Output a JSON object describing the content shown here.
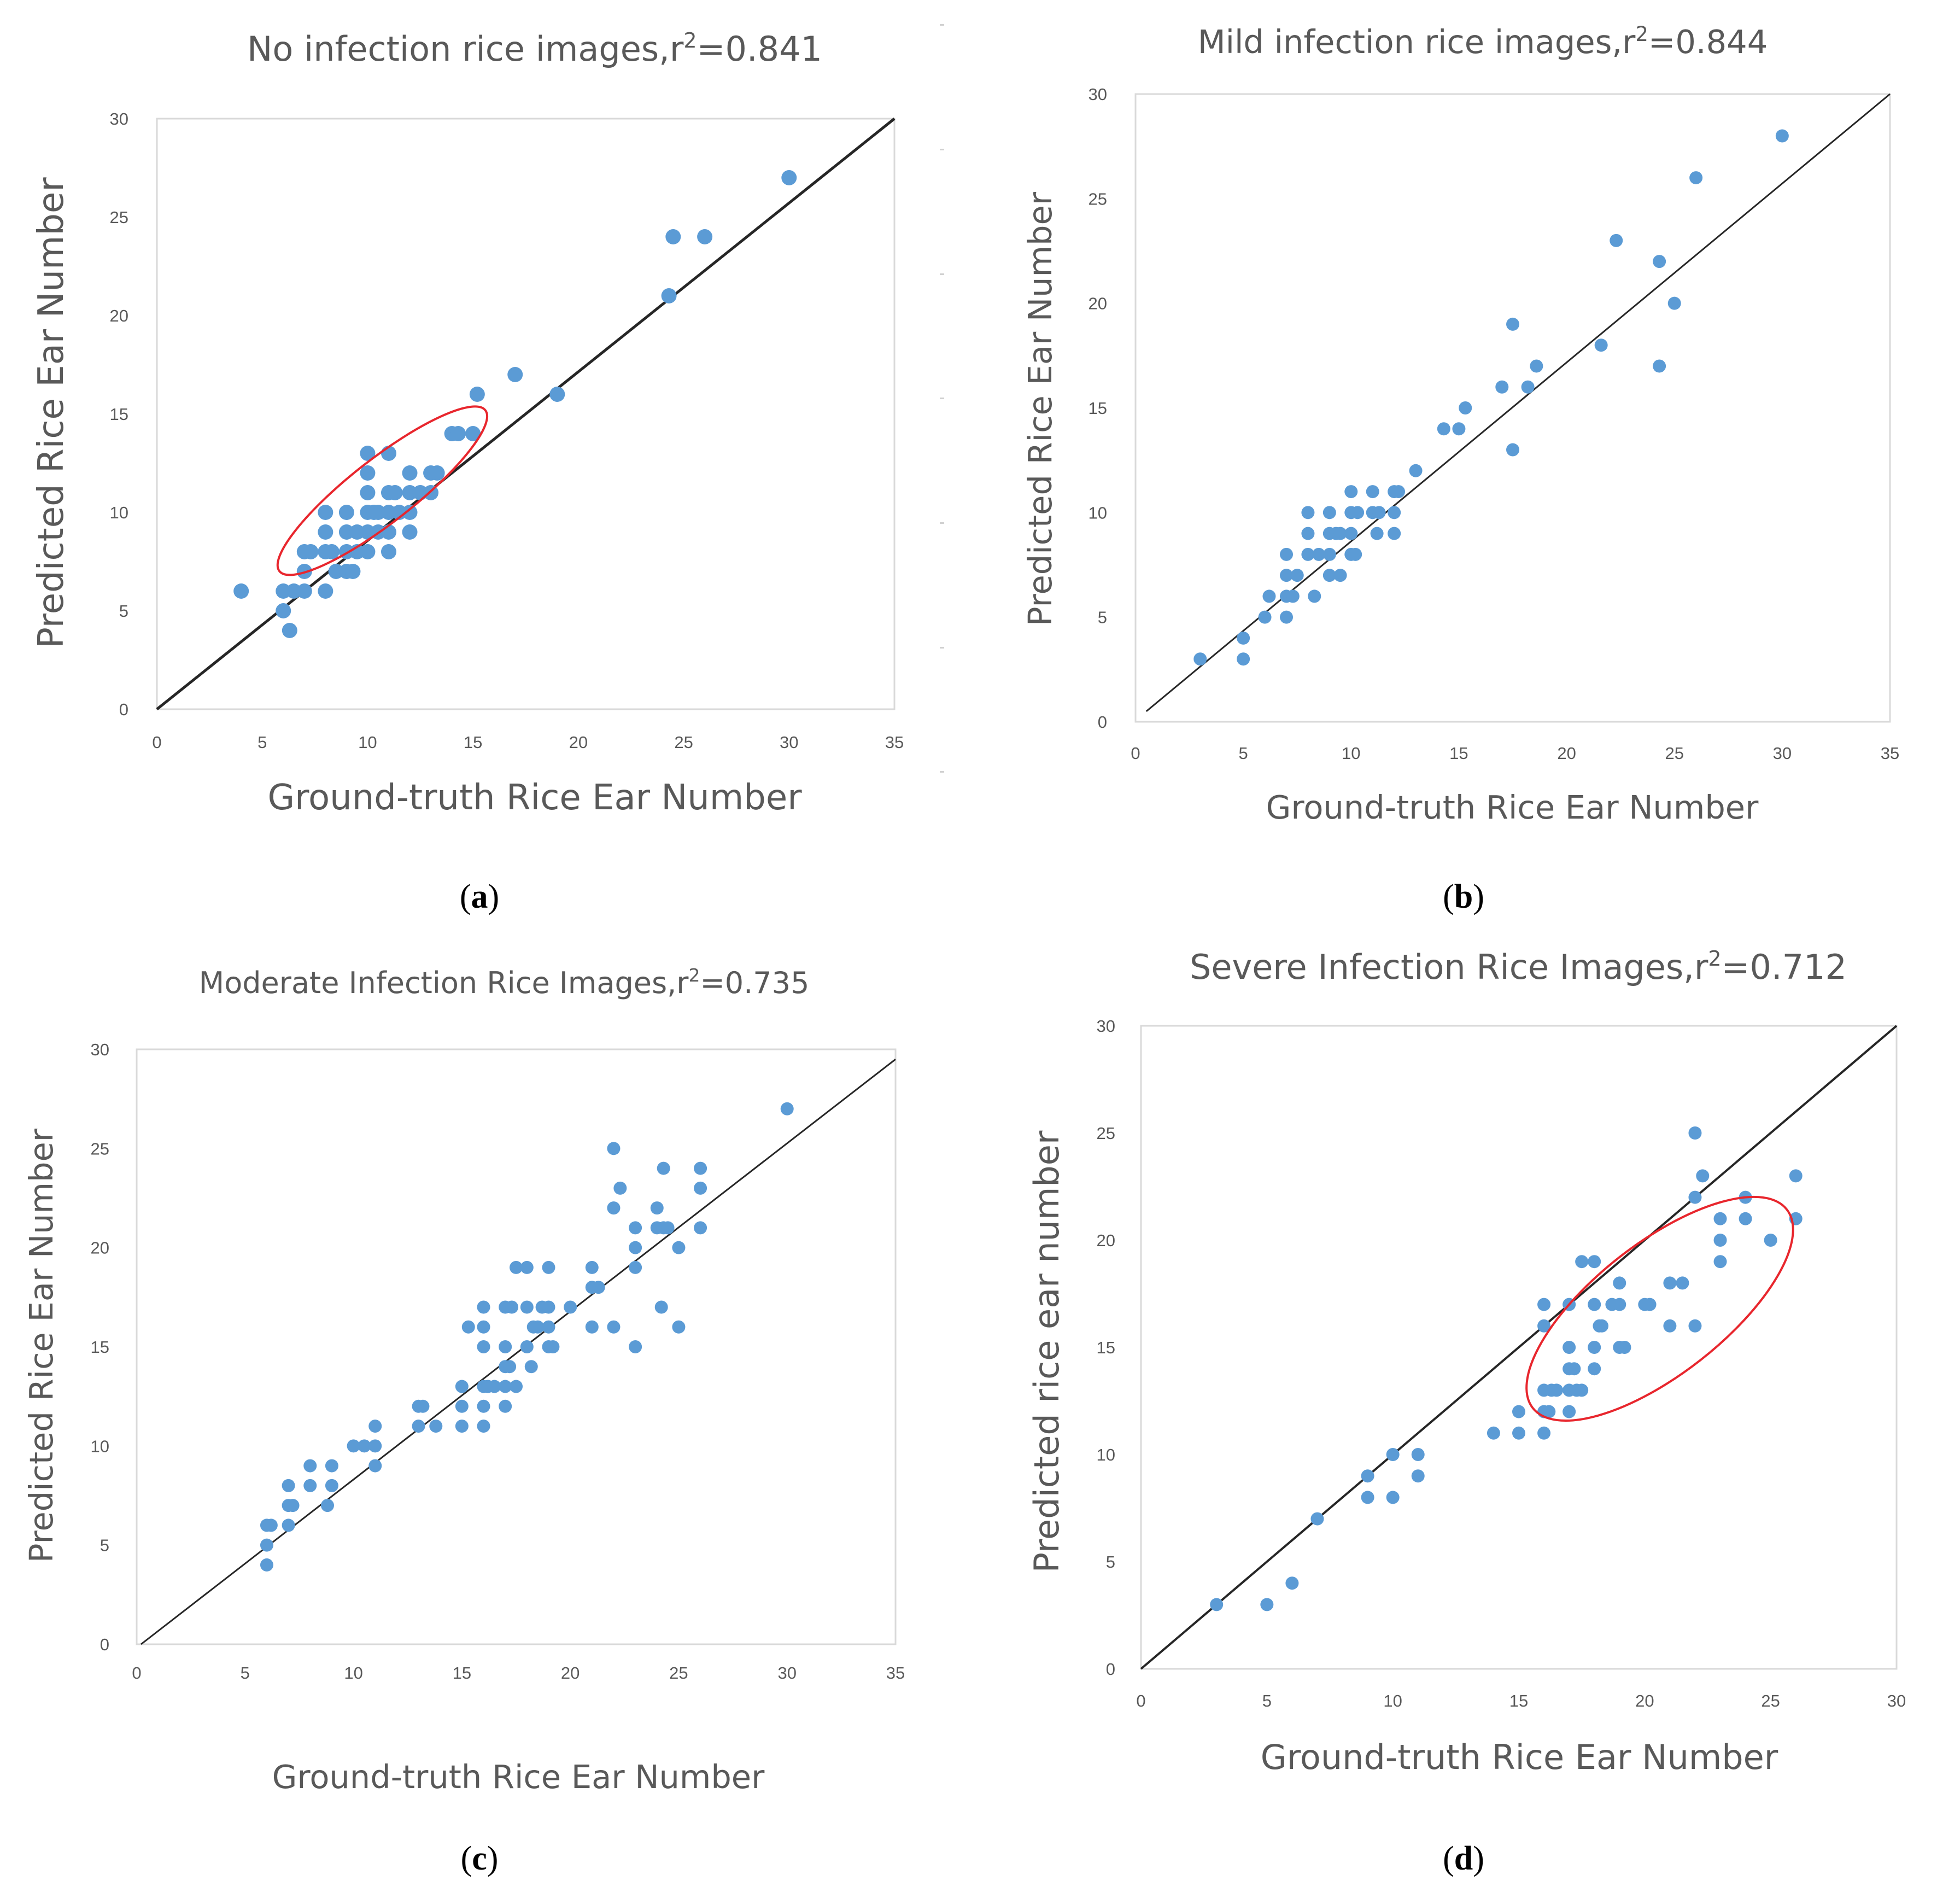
{
  "colors": {
    "points": "#5b9bd5",
    "fit_line": "#262626",
    "highlight": "#e8262d",
    "text": "#595959"
  },
  "chart_data": [
    {
      "id": "a",
      "type": "scatter",
      "caption": "a",
      "title_main": "No infection rice images,r",
      "title_sup": "2",
      "title_tail": "=0.841",
      "xlabel": "Ground-truth Rice Ear Number",
      "ylabel": "Predicted Rice Ear Number",
      "xlim": [
        0,
        35
      ],
      "ylim": [
        0,
        30
      ],
      "xticks": [
        0,
        5,
        10,
        15,
        20,
        25,
        30,
        35
      ],
      "yticks": [
        0,
        5,
        10,
        15,
        20,
        25,
        30
      ],
      "reference_line": [
        [
          0,
          0
        ],
        [
          35,
          30
        ]
      ],
      "highlight_ellipse": {
        "center": [
          10.7,
          11.1
        ],
        "rx": 6.2,
        "ry": 1.5,
        "angle_deg": 38
      },
      "points": [
        [
          4,
          6
        ],
        [
          6,
          5
        ],
        [
          6,
          6
        ],
        [
          6.3,
          4
        ],
        [
          6.5,
          6
        ],
        [
          7,
          6
        ],
        [
          7,
          7
        ],
        [
          7,
          8
        ],
        [
          7.3,
          8
        ],
        [
          8,
          8
        ],
        [
          8,
          9
        ],
        [
          8,
          10
        ],
        [
          8,
          6
        ],
        [
          8.3,
          8
        ],
        [
          8.5,
          7
        ],
        [
          9,
          7
        ],
        [
          9,
          8
        ],
        [
          9,
          9
        ],
        [
          9,
          10
        ],
        [
          9.3,
          7
        ],
        [
          9.5,
          8
        ],
        [
          9.5,
          9
        ],
        [
          10,
          8
        ],
        [
          10,
          9
        ],
        [
          10,
          10
        ],
        [
          10,
          11
        ],
        [
          10,
          12
        ],
        [
          10,
          13
        ],
        [
          10.3,
          10
        ],
        [
          10.5,
          9
        ],
        [
          10.5,
          10
        ],
        [
          11,
          8
        ],
        [
          11,
          9
        ],
        [
          11,
          10
        ],
        [
          11,
          11
        ],
        [
          11,
          13
        ],
        [
          11.3,
          11
        ],
        [
          11.5,
          10
        ],
        [
          12,
          9
        ],
        [
          12,
          10
        ],
        [
          12,
          11
        ],
        [
          12,
          12
        ],
        [
          12.5,
          11
        ],
        [
          13,
          11
        ],
        [
          13,
          12
        ],
        [
          13.3,
          12
        ],
        [
          14,
          14
        ],
        [
          14.3,
          14
        ],
        [
          15,
          14
        ],
        [
          15.2,
          16
        ],
        [
          17,
          17
        ],
        [
          19,
          16
        ],
        [
          24.3,
          21
        ],
        [
          24.5,
          24
        ],
        [
          26,
          24
        ],
        [
          30,
          27
        ]
      ]
    },
    {
      "id": "b",
      "type": "scatter",
      "caption": "b",
      "title_main": "Mild infection  rice images,r",
      "title_sup": "2",
      "title_tail": "=0.844",
      "xlabel": "Ground-truth Rice Ear Number",
      "ylabel": "Predicted Rice Ear Number",
      "xlim": [
        0,
        35
      ],
      "ylim": [
        0,
        30
      ],
      "xticks": [
        0,
        5,
        10,
        15,
        20,
        25,
        30,
        35
      ],
      "yticks": [
        0,
        5,
        10,
        15,
        20,
        25,
        30
      ],
      "reference_line": [
        [
          0.5,
          0.5
        ],
        [
          35,
          30
        ]
      ],
      "points": [
        [
          3,
          3
        ],
        [
          5,
          3
        ],
        [
          5,
          4
        ],
        [
          6,
          5
        ],
        [
          6.2,
          6
        ],
        [
          7,
          5
        ],
        [
          7,
          6
        ],
        [
          7,
          7
        ],
        [
          7,
          8
        ],
        [
          7.3,
          6
        ],
        [
          7.5,
          7
        ],
        [
          8,
          8
        ],
        [
          8,
          9
        ],
        [
          8,
          10
        ],
        [
          8.3,
          6
        ],
        [
          8.5,
          8
        ],
        [
          9,
          7
        ],
        [
          9,
          8
        ],
        [
          9,
          9
        ],
        [
          9,
          10
        ],
        [
          9.3,
          9
        ],
        [
          9.5,
          7
        ],
        [
          9.5,
          9
        ],
        [
          10,
          8
        ],
        [
          10,
          9
        ],
        [
          10,
          10
        ],
        [
          10,
          11
        ],
        [
          10.2,
          8
        ],
        [
          10.3,
          10
        ],
        [
          11,
          10
        ],
        [
          11,
          11
        ],
        [
          11.2,
          9
        ],
        [
          11.3,
          10
        ],
        [
          12,
          9
        ],
        [
          12,
          10
        ],
        [
          12,
          11
        ],
        [
          12.2,
          11
        ],
        [
          13,
          12
        ],
        [
          14.3,
          14
        ],
        [
          15,
          14
        ],
        [
          15.3,
          15
        ],
        [
          17,
          16
        ],
        [
          17.5,
          13
        ],
        [
          17.5,
          19
        ],
        [
          18.2,
          16
        ],
        [
          18.6,
          17
        ],
        [
          21.6,
          18
        ],
        [
          22.3,
          23
        ],
        [
          24.3,
          17
        ],
        [
          24.3,
          22
        ],
        [
          25,
          20
        ],
        [
          26,
          26
        ],
        [
          30,
          28
        ]
      ]
    },
    {
      "id": "c",
      "type": "scatter",
      "caption": "c",
      "title_main": "Moderate Infection  Rice Images,r",
      "title_sup": "2",
      "title_tail": "=0.735",
      "xlabel": "Ground-truth Rice Ear Number",
      "ylabel": "Predicted Rice Ear Number",
      "xlim": [
        0,
        35
      ],
      "ylim": [
        0,
        30
      ],
      "xticks": [
        0,
        5,
        10,
        15,
        20,
        25,
        30,
        35
      ],
      "yticks": [
        0,
        5,
        10,
        15,
        20,
        25,
        30
      ],
      "reference_line": [
        [
          0.2,
          0
        ],
        [
          35,
          29.5
        ]
      ],
      "points": [
        [
          6,
          4
        ],
        [
          6,
          5
        ],
        [
          6,
          6
        ],
        [
          6.2,
          6
        ],
        [
          7,
          6
        ],
        [
          7,
          7
        ],
        [
          7,
          8
        ],
        [
          7.2,
          7
        ],
        [
          8,
          8
        ],
        [
          8,
          9
        ],
        [
          8.8,
          7
        ],
        [
          9,
          8
        ],
        [
          9,
          9
        ],
        [
          10,
          10
        ],
        [
          10.5,
          10
        ],
        [
          11,
          9
        ],
        [
          11,
          10
        ],
        [
          11,
          11
        ],
        [
          13,
          11
        ],
        [
          13,
          12
        ],
        [
          13.2,
          12
        ],
        [
          13.8,
          11
        ],
        [
          15,
          11
        ],
        [
          15,
          12
        ],
        [
          15,
          13
        ],
        [
          15.3,
          16
        ],
        [
          16,
          11
        ],
        [
          16,
          12
        ],
        [
          16,
          13
        ],
        [
          16,
          15
        ],
        [
          16,
          16
        ],
        [
          16,
          17
        ],
        [
          16.2,
          13
        ],
        [
          16.5,
          13
        ],
        [
          17,
          12
        ],
        [
          17,
          13
        ],
        [
          17,
          14
        ],
        [
          17,
          15
        ],
        [
          17,
          17
        ],
        [
          17.2,
          14
        ],
        [
          17.3,
          17
        ],
        [
          17.5,
          13
        ],
        [
          17.5,
          19
        ],
        [
          18,
          15
        ],
        [
          18,
          17
        ],
        [
          18,
          19
        ],
        [
          18.2,
          14
        ],
        [
          18.3,
          16
        ],
        [
          18.5,
          16
        ],
        [
          18.7,
          17
        ],
        [
          19,
          15
        ],
        [
          19,
          16
        ],
        [
          19,
          17
        ],
        [
          19,
          19
        ],
        [
          19.2,
          15
        ],
        [
          20,
          17
        ],
        [
          21,
          16
        ],
        [
          21,
          18
        ],
        [
          21,
          19
        ],
        [
          21.3,
          18
        ],
        [
          22,
          16
        ],
        [
          22,
          22
        ],
        [
          22,
          25
        ],
        [
          22.3,
          23
        ],
        [
          23,
          15
        ],
        [
          23,
          19
        ],
        [
          23,
          20
        ],
        [
          23,
          21
        ],
        [
          24,
          21
        ],
        [
          24,
          22
        ],
        [
          24.2,
          17
        ],
        [
          24.3,
          21
        ],
        [
          24.3,
          24
        ],
        [
          24.5,
          21
        ],
        [
          25,
          16
        ],
        [
          25,
          20
        ],
        [
          26,
          21
        ],
        [
          26,
          23
        ],
        [
          26,
          24
        ],
        [
          30,
          27
        ]
      ]
    },
    {
      "id": "d",
      "type": "scatter",
      "caption": "d",
      "title_main": "Severe Infection Rice Images,r",
      "title_sup": "2",
      "title_tail": "=0.712",
      "xlabel": "Ground-truth Rice Ear Number",
      "ylabel": "Predicted rice ear number",
      "xlim": [
        0,
        30
      ],
      "ylim": [
        0,
        30
      ],
      "xticks": [
        0,
        5,
        10,
        15,
        20,
        25,
        30
      ],
      "yticks": [
        0,
        5,
        10,
        15,
        20,
        25,
        30
      ],
      "reference_line": [
        [
          0,
          0
        ],
        [
          30,
          30
        ]
      ],
      "highlight_ellipse": {
        "center": [
          20.6,
          16.8
        ],
        "rx": 6.4,
        "ry": 2.6,
        "angle_deg": 38
      },
      "points": [
        [
          3,
          3
        ],
        [
          5,
          3
        ],
        [
          6,
          4
        ],
        [
          7,
          7
        ],
        [
          9,
          8
        ],
        [
          9,
          9
        ],
        [
          10,
          8
        ],
        [
          10,
          10
        ],
        [
          11,
          9
        ],
        [
          11,
          10
        ],
        [
          14,
          11
        ],
        [
          15,
          11
        ],
        [
          15,
          12
        ],
        [
          16,
          11
        ],
        [
          16,
          12
        ],
        [
          16,
          13
        ],
        [
          16,
          16
        ],
        [
          16,
          17
        ],
        [
          16.2,
          12
        ],
        [
          16.3,
          13
        ],
        [
          16.5,
          13
        ],
        [
          17,
          12
        ],
        [
          17,
          13
        ],
        [
          17,
          14
        ],
        [
          17,
          15
        ],
        [
          17,
          17
        ],
        [
          17.2,
          14
        ],
        [
          17.3,
          13
        ],
        [
          17.5,
          13
        ],
        [
          17.5,
          19
        ],
        [
          18,
          14
        ],
        [
          18,
          15
        ],
        [
          18,
          17
        ],
        [
          18,
          19
        ],
        [
          18.2,
          16
        ],
        [
          18.3,
          16
        ],
        [
          18.7,
          17
        ],
        [
          19,
          15
        ],
        [
          19,
          17
        ],
        [
          19,
          18
        ],
        [
          19.2,
          15
        ],
        [
          20,
          17
        ],
        [
          20.2,
          17
        ],
        [
          21,
          16
        ],
        [
          21,
          18
        ],
        [
          21.5,
          18
        ],
        [
          22,
          16
        ],
        [
          22,
          22
        ],
        [
          22,
          25
        ],
        [
          22.3,
          23
        ],
        [
          23,
          19
        ],
        [
          23,
          20
        ],
        [
          23,
          21
        ],
        [
          24,
          21
        ],
        [
          24,
          22
        ],
        [
          25,
          20
        ],
        [
          26,
          21
        ],
        [
          26,
          23
        ]
      ]
    }
  ]
}
